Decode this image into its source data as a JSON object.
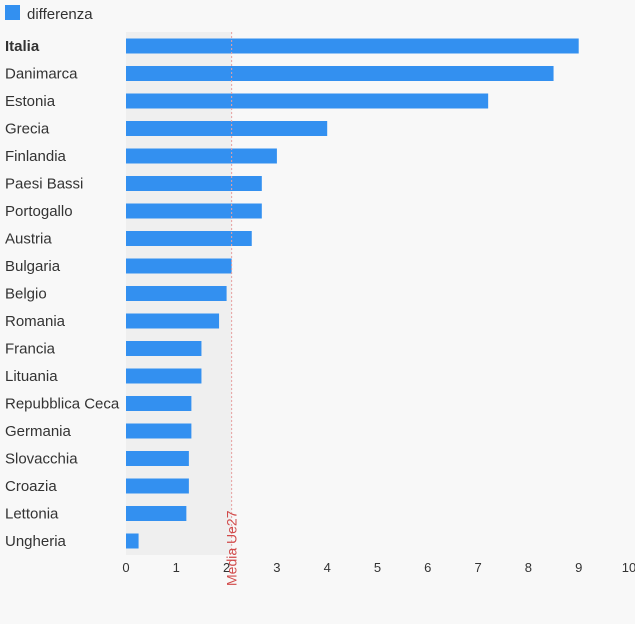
{
  "chart_data": {
    "type": "bar",
    "orientation": "horizontal",
    "legend": {
      "label": "differenza",
      "color": "#3390f0",
      "position": "top-left"
    },
    "categories": [
      "Italia",
      "Danimarca",
      "Estonia",
      "Grecia",
      "Finlandia",
      "Paesi Bassi",
      "Portogallo",
      "Austria",
      "Bulgaria",
      "Belgio",
      "Romania",
      "Francia",
      "Lituania",
      "Repubblica Ceca",
      "Germania",
      "Slovacchia",
      "Croazia",
      "Lettonia",
      "Ungheria"
    ],
    "highlight_category": "Italia",
    "series": [
      {
        "name": "differenza",
        "color": "#3390f0",
        "values": [
          9.0,
          8.5,
          7.2,
          4.0,
          3.0,
          2.7,
          2.7,
          2.5,
          2.1,
          2.0,
          1.85,
          1.5,
          1.5,
          1.3,
          1.3,
          1.25,
          1.25,
          1.2,
          0.25
        ]
      }
    ],
    "xlim": [
      0,
      10
    ],
    "xticks": [
      0,
      1,
      2,
      3,
      4,
      5,
      6,
      7,
      8,
      9,
      10
    ],
    "reference_line": {
      "label": "Media Ue27",
      "value": 2.1,
      "color": "#d14a4a"
    },
    "shaded_band": [
      0,
      2.1
    ],
    "grid": false
  }
}
